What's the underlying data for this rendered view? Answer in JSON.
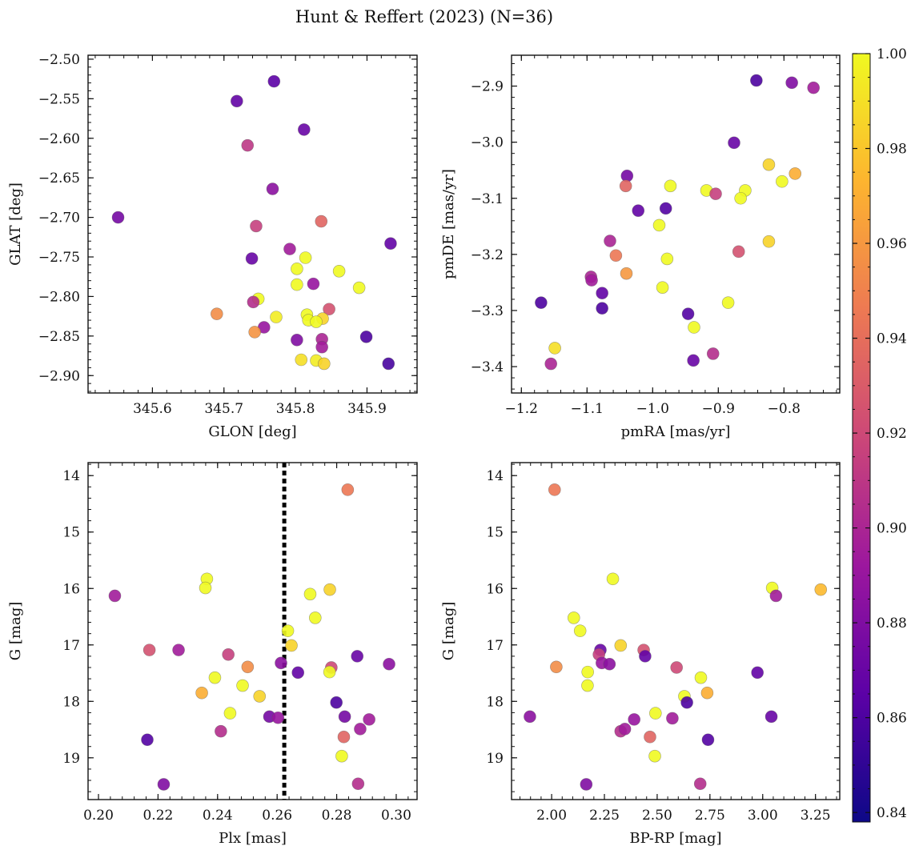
{
  "figure": {
    "title": "Hunt & Reffert (2023) (N=36)"
  },
  "colormap": {
    "name": "plasma",
    "stops": [
      "#0d0887",
      "#5c01a6",
      "#9c179e",
      "#cc4778",
      "#ed7953",
      "#fdb42f",
      "#f0f921"
    ],
    "range": [
      0.838,
      1.0
    ],
    "ticks": [
      "0.84",
      "0.86",
      "0.88",
      "0.90",
      "0.92",
      "0.94",
      "0.96",
      "0.98",
      "1.00"
    ],
    "tick_values": [
      0.84,
      0.86,
      0.88,
      0.9,
      0.92,
      0.94,
      0.96,
      0.98,
      1.0
    ]
  },
  "chart_data": [
    {
      "type": "scatter",
      "name": "position",
      "xlabel": "GLON [deg]",
      "ylabel": "GLAT [deg]",
      "xlim": [
        345.51,
        345.97
      ],
      "ylim": [
        -2.922,
        -2.495
      ],
      "xticks": [
        345.6,
        345.7,
        345.8,
        345.9
      ],
      "xtick_labels": [
        "345.6",
        "345.7",
        "345.8",
        "345.9"
      ],
      "yticks": [
        -2.5,
        -2.55,
        -2.6,
        -2.65,
        -2.7,
        -2.75,
        -2.8,
        -2.85,
        -2.9
      ],
      "ytick_labels": [
        "−2.50",
        "−2.55",
        "−2.60",
        "−2.65",
        "−2.70",
        "−2.75",
        "−2.80",
        "−2.85",
        "−2.90"
      ],
      "points": [
        [
          345.77,
          -2.528,
          0.865
        ],
        [
          345.718,
          -2.553,
          0.868
        ],
        [
          345.812,
          -2.589,
          0.87
        ],
        [
          345.733,
          -2.609,
          0.91
        ],
        [
          345.768,
          -2.664,
          0.885
        ],
        [
          345.552,
          -2.7,
          0.875
        ],
        [
          345.745,
          -2.711,
          0.915
        ],
        [
          345.836,
          -2.705,
          0.935
        ],
        [
          345.933,
          -2.733,
          0.868
        ],
        [
          345.739,
          -2.752,
          0.87
        ],
        [
          345.792,
          -2.74,
          0.895
        ],
        [
          345.814,
          -2.751,
          1.0
        ],
        [
          345.802,
          -2.765,
          1.0
        ],
        [
          345.861,
          -2.768,
          1.0
        ],
        [
          345.802,
          -2.785,
          1.0
        ],
        [
          345.825,
          -2.784,
          0.89
        ],
        [
          345.889,
          -2.789,
          1.0
        ],
        [
          345.748,
          -2.803,
          1.0
        ],
        [
          345.741,
          -2.807,
          0.905
        ],
        [
          345.69,
          -2.822,
          0.955
        ],
        [
          345.847,
          -2.816,
          0.925
        ],
        [
          345.816,
          -2.823,
          1.0
        ],
        [
          345.773,
          -2.826,
          0.995
        ],
        [
          345.818,
          -2.83,
          1.0
        ],
        [
          345.838,
          -2.828,
          0.985
        ],
        [
          345.829,
          -2.832,
          1.0
        ],
        [
          345.756,
          -2.839,
          0.89
        ],
        [
          345.743,
          -2.845,
          0.958
        ],
        [
          345.802,
          -2.855,
          0.88
        ],
        [
          345.837,
          -2.854,
          0.9
        ],
        [
          345.899,
          -2.851,
          0.86
        ],
        [
          345.837,
          -2.864,
          0.895
        ],
        [
          345.808,
          -2.88,
          0.99
        ],
        [
          345.829,
          -2.881,
          0.995
        ],
        [
          345.84,
          -2.885,
          0.985
        ],
        [
          345.93,
          -2.885,
          0.858
        ]
      ]
    },
    {
      "type": "scatter",
      "name": "proper-motion",
      "xlabel": "pmRA [mas/yr]",
      "ylabel": "pmDE [mas/yr]",
      "xlim": [
        -1.215,
        -0.715
      ],
      "ylim": [
        -3.447,
        -2.845
      ],
      "xticks": [
        -1.2,
        -1.1,
        -1.0,
        -0.9,
        -0.8
      ],
      "xtick_labels": [
        "−1.2",
        "−1.1",
        "−1.0",
        "−0.9",
        "−0.8"
      ],
      "yticks": [
        -2.9,
        -3.0,
        -3.1,
        -3.2,
        -3.3,
        -3.4
      ],
      "ytick_labels": [
        "−2.9",
        "−3.0",
        "−3.1",
        "−3.2",
        "−3.3",
        "−3.4"
      ],
      "points": [
        [
          -0.842,
          -2.89,
          0.86
        ],
        [
          -0.788,
          -2.894,
          0.88
        ],
        [
          -0.755,
          -2.903,
          0.895
        ],
        [
          -0.876,
          -3.001,
          0.87
        ],
        [
          -1.039,
          -3.06,
          0.875
        ],
        [
          -0.823,
          -3.04,
          0.985
        ],
        [
          -0.783,
          -3.056,
          0.97
        ],
        [
          -1.041,
          -3.078,
          0.935
        ],
        [
          -0.973,
          -3.078,
          1.0
        ],
        [
          -0.918,
          -3.086,
          1.0
        ],
        [
          -0.904,
          -3.092,
          0.915
        ],
        [
          -0.859,
          -3.086,
          1.0
        ],
        [
          -0.803,
          -3.07,
          1.0
        ],
        [
          -0.866,
          -3.1,
          1.0
        ],
        [
          -1.022,
          -3.122,
          0.868
        ],
        [
          -0.98,
          -3.118,
          0.862
        ],
        [
          -0.99,
          -3.148,
          1.0
        ],
        [
          -1.065,
          -3.176,
          0.9
        ],
        [
          -0.823,
          -3.177,
          0.985
        ],
        [
          -1.056,
          -3.202,
          0.945
        ],
        [
          -0.978,
          -3.208,
          1.0
        ],
        [
          -0.869,
          -3.195,
          0.925
        ],
        [
          -1.04,
          -3.234,
          0.96
        ],
        [
          -1.094,
          -3.24,
          0.9
        ],
        [
          -1.093,
          -3.246,
          0.895
        ],
        [
          -0.985,
          -3.259,
          1.0
        ],
        [
          -1.077,
          -3.269,
          0.868
        ],
        [
          -1.17,
          -3.286,
          0.86
        ],
        [
          -1.077,
          -3.296,
          0.86
        ],
        [
          -0.885,
          -3.286,
          1.0
        ],
        [
          -0.946,
          -3.306,
          0.862
        ],
        [
          -0.937,
          -3.33,
          1.0
        ],
        [
          -1.149,
          -3.367,
          0.99
        ],
        [
          -0.908,
          -3.377,
          0.905
        ],
        [
          -0.938,
          -3.389,
          0.87
        ],
        [
          -1.155,
          -3.395,
          0.9
        ]
      ]
    },
    {
      "type": "scatter",
      "name": "parallax-magnitude",
      "xlabel": "Plx [mas]",
      "ylabel": "G [mag]",
      "xlim": [
        0.1965,
        0.307
      ],
      "ylim": [
        19.74,
        13.77
      ],
      "xticks": [
        0.2,
        0.22,
        0.24,
        0.26,
        0.28,
        0.3
      ],
      "xtick_labels": [
        "0.20",
        "0.22",
        "0.24",
        "0.26",
        "0.28",
        "0.30"
      ],
      "yticks": [
        14,
        15,
        16,
        17,
        18,
        19
      ],
      "ytick_labels": [
        "14",
        "15",
        "16",
        "17",
        "18",
        "19"
      ],
      "vline": 0.2624,
      "points": [
        [
          0.2837,
          14.25,
          0.945
        ],
        [
          0.2364,
          15.83,
          1.0
        ],
        [
          0.2359,
          15.99,
          1.0
        ],
        [
          0.2055,
          16.13,
          0.895
        ],
        [
          0.2711,
          16.1,
          1.0
        ],
        [
          0.2777,
          16.02,
          0.985
        ],
        [
          0.2728,
          16.52,
          1.0
        ],
        [
          0.2636,
          16.75,
          1.0
        ],
        [
          0.2648,
          17.01,
          0.985
        ],
        [
          0.2171,
          17.09,
          0.925
        ],
        [
          0.2269,
          17.09,
          0.895
        ],
        [
          0.2436,
          17.17,
          0.915
        ],
        [
          0.2869,
          17.2,
          0.87
        ],
        [
          0.2976,
          17.34,
          0.885
        ],
        [
          0.2613,
          17.32,
          0.885
        ],
        [
          0.2501,
          17.39,
          0.955
        ],
        [
          0.2782,
          17.4,
          0.92
        ],
        [
          0.267,
          17.49,
          0.868
        ],
        [
          0.2776,
          17.48,
          1.0
        ],
        [
          0.2391,
          17.58,
          1.0
        ],
        [
          0.2484,
          17.72,
          1.0
        ],
        [
          0.2347,
          17.85,
          0.97
        ],
        [
          0.2541,
          17.91,
          0.985
        ],
        [
          0.2799,
          18.02,
          0.86
        ],
        [
          0.2442,
          18.21,
          1.0
        ],
        [
          0.2574,
          18.27,
          0.875
        ],
        [
          0.2603,
          18.29,
          0.89
        ],
        [
          0.2827,
          18.27,
          0.875
        ],
        [
          0.2909,
          18.32,
          0.895
        ],
        [
          0.2411,
          18.53,
          0.905
        ],
        [
          0.2879,
          18.49,
          0.895
        ],
        [
          0.2824,
          18.63,
          0.935
        ],
        [
          0.2164,
          18.68,
          0.862
        ],
        [
          0.2817,
          18.97,
          1.0
        ],
        [
          0.2219,
          19.47,
          0.88
        ],
        [
          0.2872,
          19.46,
          0.905
        ]
      ]
    },
    {
      "type": "scatter",
      "name": "color-magnitude",
      "xlabel": "BP-RP [mag]",
      "ylabel": "G [mag]",
      "xlim": [
        1.81,
        3.365
      ],
      "ylim": [
        19.74,
        13.77
      ],
      "xticks": [
        2.0,
        2.25,
        2.5,
        2.75,
        3.0,
        3.25
      ],
      "xtick_labels": [
        "2.00",
        "2.25",
        "2.50",
        "2.75",
        "3.00",
        "3.25"
      ],
      "yticks": [
        14,
        15,
        16,
        17,
        18,
        19
      ],
      "ytick_labels": [
        "14",
        "15",
        "16",
        "17",
        "18",
        "19"
      ],
      "points": [
        [
          2.014,
          14.25,
          0.945
        ],
        [
          2.29,
          15.83,
          1.0
        ],
        [
          3.045,
          15.99,
          1.0
        ],
        [
          3.063,
          16.13,
          0.895
        ],
        [
          3.275,
          16.02,
          0.975
        ],
        [
          2.105,
          16.52,
          1.0
        ],
        [
          2.135,
          16.75,
          1.0
        ],
        [
          2.327,
          17.01,
          0.985
        ],
        [
          2.231,
          17.09,
          0.87
        ],
        [
          2.436,
          17.09,
          0.925
        ],
        [
          2.443,
          17.2,
          0.868
        ],
        [
          2.224,
          17.17,
          0.915
        ],
        [
          2.238,
          17.32,
          0.89
        ],
        [
          2.274,
          17.34,
          0.885
        ],
        [
          2.022,
          17.39,
          0.955
        ],
        [
          2.592,
          17.4,
          0.92
        ],
        [
          2.171,
          17.48,
          1.0
        ],
        [
          2.975,
          17.49,
          0.868
        ],
        [
          2.707,
          17.58,
          1.0
        ],
        [
          2.17,
          17.72,
          1.0
        ],
        [
          2.737,
          17.85,
          0.97
        ],
        [
          2.629,
          17.91,
          1.0
        ],
        [
          2.641,
          18.02,
          0.86
        ],
        [
          2.492,
          18.21,
          1.0
        ],
        [
          1.897,
          18.27,
          0.885
        ],
        [
          3.041,
          18.27,
          0.87
        ],
        [
          2.391,
          18.32,
          0.89
        ],
        [
          2.572,
          18.3,
          0.895
        ],
        [
          2.327,
          18.53,
          0.905
        ],
        [
          2.347,
          18.49,
          0.895
        ],
        [
          2.466,
          18.63,
          0.935
        ],
        [
          2.741,
          18.68,
          0.862
        ],
        [
          2.489,
          18.97,
          1.0
        ],
        [
          2.164,
          19.47,
          0.88
        ],
        [
          2.704,
          19.46,
          0.905
        ]
      ]
    }
  ]
}
